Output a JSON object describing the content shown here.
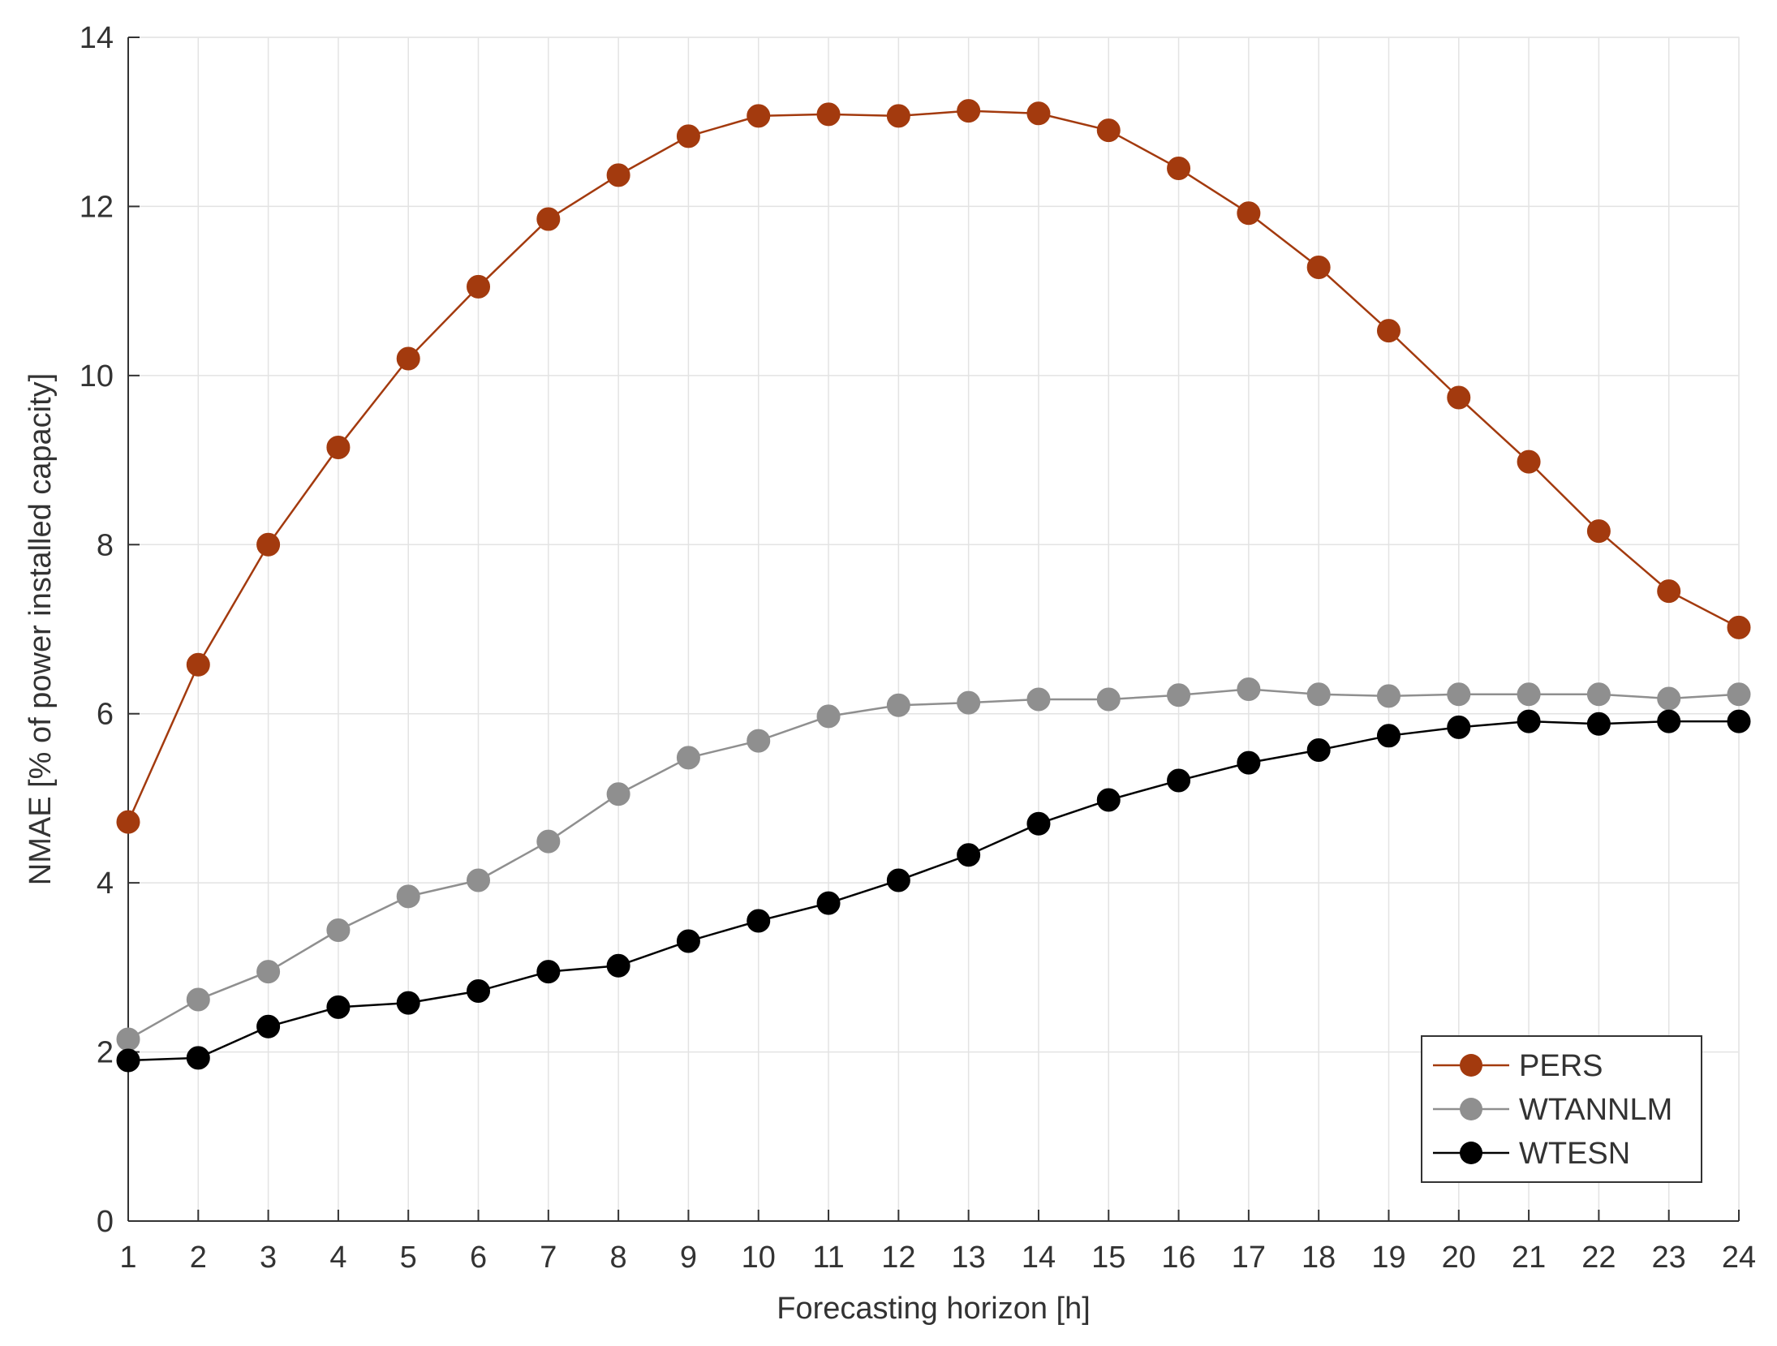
{
  "chart_data": {
    "type": "line",
    "title": "",
    "xlabel": "Forecasting horizon [h]",
    "ylabel": "NMAE [% of power installed capacity]",
    "x": [
      1,
      2,
      3,
      4,
      5,
      6,
      7,
      8,
      9,
      10,
      11,
      12,
      13,
      14,
      15,
      16,
      17,
      18,
      19,
      20,
      21,
      22,
      23,
      24
    ],
    "xticks": [
      "1",
      "2",
      "3",
      "4",
      "5",
      "6",
      "7",
      "8",
      "9",
      "10",
      "11",
      "12",
      "13",
      "14",
      "15",
      "16",
      "17",
      "18",
      "19",
      "20",
      "21",
      "22",
      "23",
      "24"
    ],
    "yticks": [
      "0",
      "2",
      "4",
      "6",
      "8",
      "10",
      "12",
      "14"
    ],
    "xlim": [
      1,
      24
    ],
    "ylim": [
      0,
      14
    ],
    "grid": true,
    "legend_position": "bottom-right",
    "series": [
      {
        "name": "PERS",
        "color": "#a33a0e",
        "values": [
          4.72,
          6.58,
          8.0,
          9.15,
          10.2,
          11.05,
          11.85,
          12.37,
          12.83,
          13.07,
          13.09,
          13.07,
          13.13,
          13.1,
          12.9,
          12.45,
          11.92,
          11.28,
          10.53,
          9.74,
          8.98,
          8.16,
          7.45,
          7.02
        ]
      },
      {
        "name": "WTANNLM",
        "color": "#8f8f8f",
        "values": [
          2.15,
          2.62,
          2.95,
          3.44,
          3.84,
          4.03,
          4.49,
          5.05,
          5.48,
          5.68,
          5.97,
          6.1,
          6.13,
          6.17,
          6.17,
          6.22,
          6.29,
          6.23,
          6.21,
          6.23,
          6.23,
          6.23,
          6.18,
          6.23
        ]
      },
      {
        "name": "WTESN",
        "color": "#000000",
        "values": [
          1.9,
          1.93,
          2.3,
          2.53,
          2.58,
          2.72,
          2.95,
          3.02,
          3.31,
          3.55,
          3.76,
          4.03,
          4.33,
          4.7,
          4.98,
          5.21,
          5.42,
          5.57,
          5.74,
          5.84,
          5.91,
          5.88,
          5.91,
          5.91
        ]
      }
    ]
  }
}
